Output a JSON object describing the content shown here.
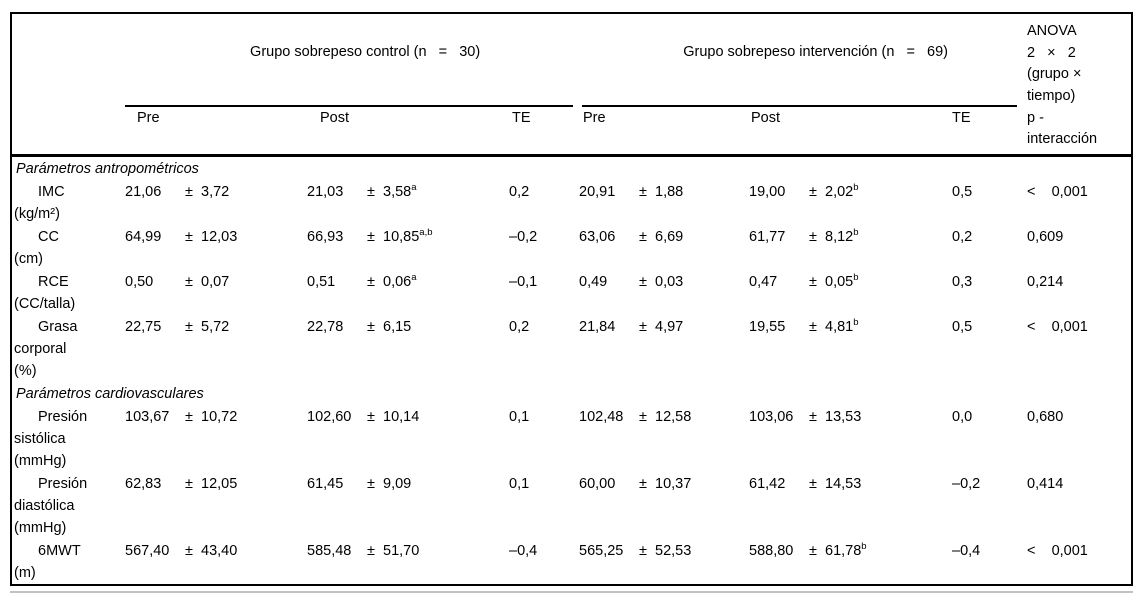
{
  "page": {
    "background": "#ffffff"
  },
  "table": {
    "pm_symbol": "±",
    "rules_color": "#000000",
    "secondary_rule_color": "#9a9a9a",
    "header": {
      "group1_label": "Grupo sobrepeso control (n   =   30)",
      "group2_label": "Grupo sobrepeso intervención (n   =   69)",
      "anova_label": "ANOVA\n2   ×   2\n(grupo ×\ntiempo)",
      "pre_label": "Pre",
      "post_label": "Post",
      "te_label": "TE",
      "p_label": "p -\ninteracción"
    },
    "rows": [
      {
        "type": "section",
        "label": "Parámetros antropométricos"
      },
      {
        "type": "data",
        "label": "IMC\n(kg/m²)",
        "g1_pre": {
          "m": "21,06",
          "sd": "3,72"
        },
        "g1_post": {
          "m": "21,03",
          "sd": "3,58",
          "sup": "a"
        },
        "g1_te": "0,2",
        "g2_pre": {
          "m": "20,91",
          "sd": "1,88"
        },
        "g2_post": {
          "m": "19,00",
          "sd": "2,02",
          "sup": "b"
        },
        "g2_te": "0,5",
        "p": "<    0,001"
      },
      {
        "type": "data",
        "label": "CC\n(cm)",
        "g1_pre": {
          "m": "64,99",
          "sd": "12,03"
        },
        "g1_post": {
          "m": "66,93",
          "sd": "10,85",
          "sup": "a,b"
        },
        "g1_te": "–0,2",
        "g2_pre": {
          "m": "63,06",
          "sd": "6,69"
        },
        "g2_post": {
          "m": "61,77",
          "sd": "8,12",
          "sup": "b"
        },
        "g2_te": "0,2",
        "p": "0,609"
      },
      {
        "type": "data",
        "label": "RCE\n(CC/talla)",
        "g1_pre": {
          "m": "0,50",
          "sd": "0,07"
        },
        "g1_post": {
          "m": "0,51",
          "sd": "0,06",
          "sup": "a"
        },
        "g1_te": "–0,1",
        "g2_pre": {
          "m": "0,49",
          "sd": "0,03"
        },
        "g2_post": {
          "m": "0,47",
          "sd": "0,05",
          "sup": "b"
        },
        "g2_te": "0,3",
        "p": "0,214"
      },
      {
        "type": "data",
        "label": "Grasa\ncorporal\n(%)",
        "g1_pre": {
          "m": "22,75",
          "sd": "5,72"
        },
        "g1_post": {
          "m": "22,78",
          "sd": "6,15"
        },
        "g1_te": "0,2",
        "g2_pre": {
          "m": "21,84",
          "sd": "4,97"
        },
        "g2_post": {
          "m": "19,55",
          "sd": "4,81",
          "sup": "b"
        },
        "g2_te": "0,5",
        "p": "<    0,001"
      },
      {
        "type": "section",
        "label": "Parámetros cardiovasculares"
      },
      {
        "type": "data",
        "label": "Presión\nsistólica\n(mmHg)",
        "g1_pre": {
          "m": "103,67",
          "sd": "10,72"
        },
        "g1_post": {
          "m": "102,60",
          "sd": "10,14"
        },
        "g1_te": "0,1",
        "g2_pre": {
          "m": "102,48",
          "sd": "12,58"
        },
        "g2_post": {
          "m": "103,06",
          "sd": "13,53"
        },
        "g2_te": "0,0",
        "p": "0,680"
      },
      {
        "type": "data",
        "label": "Presión\ndiastólica\n(mmHg)",
        "g1_pre": {
          "m": "62,83",
          "sd": "12,05"
        },
        "g1_post": {
          "m": "61,45",
          "sd": "9,09"
        },
        "g1_te": "0,1",
        "g2_pre": {
          "m": "60,00",
          "sd": "10,37"
        },
        "g2_post": {
          "m": "61,42",
          "sd": "14,53"
        },
        "g2_te": "–0,2",
        "p": "0,414"
      },
      {
        "type": "data",
        "label": "6MWT\n(m)",
        "g1_pre": {
          "m": "567,40",
          "sd": "43,40"
        },
        "g1_post": {
          "m": "585,48",
          "sd": "51,70"
        },
        "g1_te": "–0,4",
        "g2_pre": {
          "m": "565,25",
          "sd": "52,53"
        },
        "g2_post": {
          "m": "588,80",
          "sd": "61,78",
          "sup": "b"
        },
        "g2_te": "–0,4",
        "p": "<    0,001"
      }
    ]
  }
}
